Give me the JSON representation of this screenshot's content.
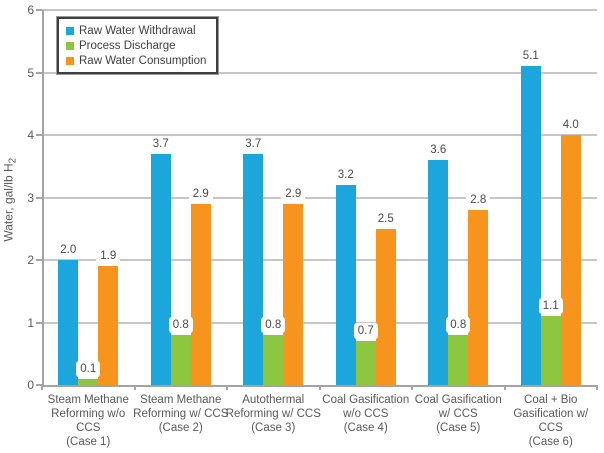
{
  "chart_data": {
    "type": "bar",
    "title": "",
    "ylabel": "Water, gal/lb H2",
    "ylabel_prefix": "Water, gal/lb H",
    "ylabel_sub": "2",
    "xlabel": "",
    "ylim": [
      0,
      6
    ],
    "yticks": [
      0,
      1,
      2,
      3,
      4,
      5,
      6
    ],
    "grid": true,
    "legend_position": "top-left",
    "categories": [
      [
        "Steam Methane",
        "Reforming w/o",
        "CCS",
        "(Case 1)"
      ],
      [
        "Steam Methane",
        "Reforming w/ CCS",
        "(Case 2)"
      ],
      [
        "Autothermal",
        "Reforming w/ CCS",
        "(Case 3)"
      ],
      [
        "Coal Gasification",
        "w/o CCS",
        "(Case 4)"
      ],
      [
        "Coal Gasification",
        "w/ CCS",
        "(Case 5)"
      ],
      [
        "Coal + Bio",
        "Gasification w/",
        "CCS",
        "(Case 6)"
      ]
    ],
    "series": [
      {
        "name": "Raw Water Withdrawal",
        "color": "#1CA6DC",
        "values": [
          2.0,
          3.7,
          3.7,
          3.2,
          3.6,
          5.1
        ]
      },
      {
        "name": "Process Discharge",
        "color": "#8DC63F",
        "values": [
          0.1,
          0.8,
          0.8,
          0.7,
          0.8,
          1.1
        ]
      },
      {
        "name": "Raw Water Consumption",
        "color": "#F7941E",
        "values": [
          1.9,
          2.9,
          2.9,
          2.5,
          2.8,
          4.0
        ]
      }
    ]
  },
  "colors": {
    "gridline": "#c6c6c6",
    "axis": "#a3a3a3",
    "tick_text": "#595959",
    "data_label_text": "#4a4a4a",
    "legend_border": "#3f3f3f"
  }
}
